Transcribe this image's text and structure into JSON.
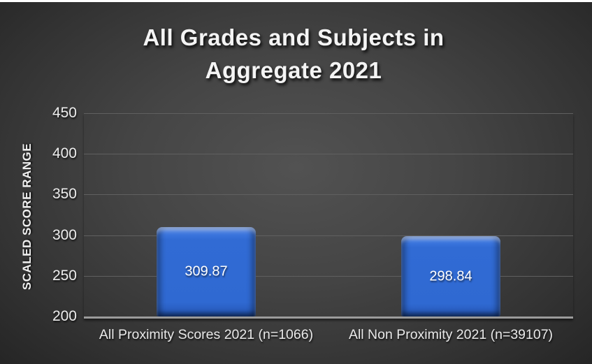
{
  "slide": {
    "title_line1": "All Grades and Subjects in",
    "title_line2": "Aggregate 2021"
  },
  "chart_data": {
    "type": "bar",
    "title": "All Grades and Subjects in Aggregate 2021",
    "xlabel": "",
    "ylabel": "SCALED SCORE RANGE",
    "categories": [
      "All Proximity Scores 2021 (n=1066)",
      "All Non Proximity 2021 (n=39107)"
    ],
    "values": [
      309.87,
      298.84
    ],
    "value_labels": [
      "309.87",
      "298.84"
    ],
    "yticks": [
      450,
      400,
      350,
      300,
      250,
      200
    ],
    "ylim": [
      200,
      450
    ],
    "grid": true,
    "legend": "none",
    "colors": {
      "bar_fill": "#2f69d2",
      "bar_bevel_highlight": "#6b96e6",
      "bar_bevel_shadow": "#2050a8",
      "background_center": "#525252",
      "background_edge": "#232323",
      "gridline": "#606060",
      "axis_line": "#9b9b9b",
      "text": "#f4f4f4",
      "data_label": "#ffffff"
    }
  }
}
